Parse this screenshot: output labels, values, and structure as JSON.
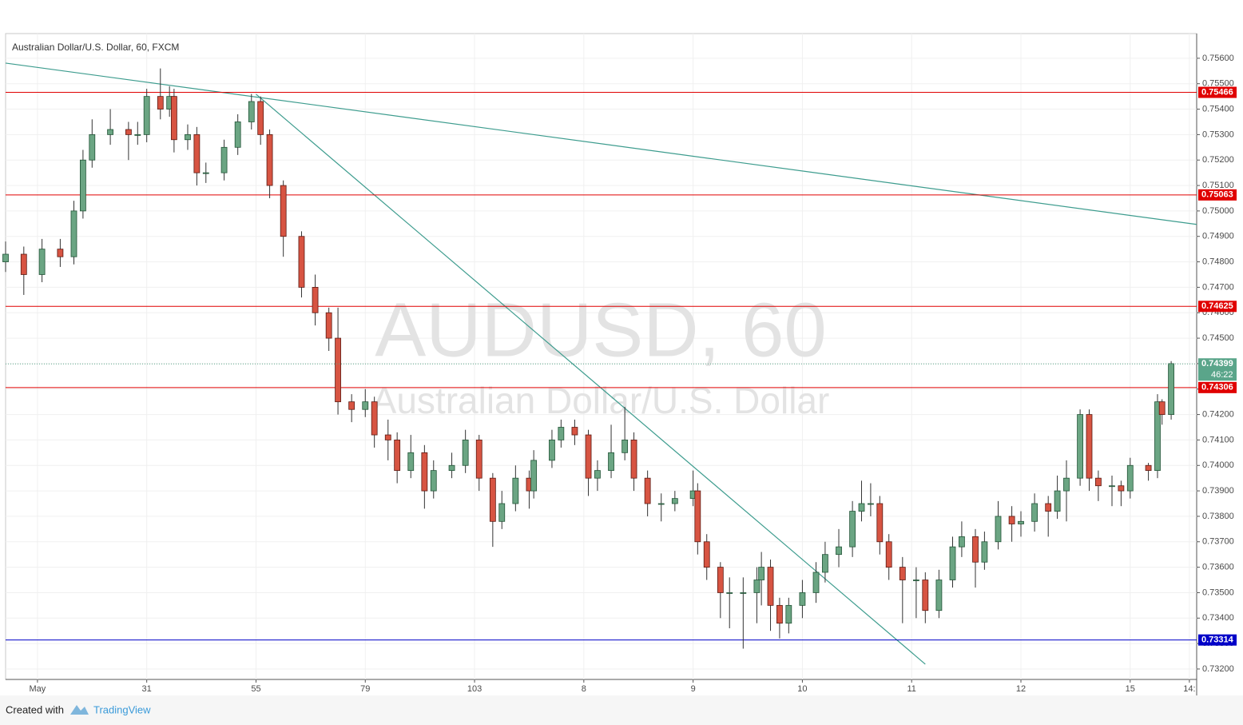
{
  "chart_data": {
    "type": "candlestick",
    "title": "Australian Dollar/U.S. Dollar, 60, FXCM",
    "watermark": "AUDUSD, 60",
    "watermark_subtitle": "Australian Dollar/U.S. Dollar",
    "footer": {
      "created": "Created with",
      "brand": "TradingView"
    },
    "up_color": "#6ba583",
    "down_color": "#d75442",
    "grid": true,
    "x": [
      0,
      4,
      8,
      12,
      15,
      17,
      19,
      23,
      27,
      29,
      31,
      34,
      36,
      37,
      40,
      42,
      44,
      48,
      51,
      54,
      56,
      58,
      61,
      65,
      68,
      71,
      73,
      76,
      79,
      81,
      84,
      86,
      89,
      92,
      94,
      98,
      101,
      104,
      107,
      109,
      112,
      115,
      116,
      120,
      122,
      125,
      128,
      130,
      133,
      136,
      138,
      141,
      144,
      147,
      151,
      152,
      154,
      157,
      159,
      162,
      165,
      166,
      168,
      170,
      172,
      175,
      178,
      180,
      183,
      186,
      188,
      190,
      192,
      194,
      197,
      200,
      202,
      205,
      208,
      210,
      213,
      215,
      218,
      221,
      223,
      226,
      229,
      231,
      233,
      236,
      238,
      240,
      243,
      245,
      247,
      251,
      253,
      254,
      256
    ],
    "open": [
      0.748,
      0.7483,
      0.7475,
      0.7485,
      0.7482,
      0.75,
      0.752,
      0.753,
      0.7532,
      0.753,
      0.753,
      0.7545,
      0.754,
      0.7545,
      0.7528,
      0.753,
      0.7515,
      0.7515,
      0.7525,
      0.7535,
      0.7543,
      0.753,
      0.751,
      0.749,
      0.747,
      0.746,
      0.745,
      0.7425,
      0.7422,
      0.7425,
      0.7412,
      0.741,
      0.7398,
      0.7405,
      0.739,
      0.7398,
      0.74,
      0.741,
      0.7395,
      0.7378,
      0.7385,
      0.7395,
      0.739,
      0.7402,
      0.741,
      0.7415,
      0.7412,
      0.7395,
      0.7398,
      0.7405,
      0.741,
      0.7395,
      0.7385,
      0.7385,
      0.7387,
      0.739,
      0.737,
      0.736,
      0.735,
      0.735,
      0.735,
      0.7355,
      0.736,
      0.7345,
      0.7338,
      0.7345,
      0.735,
      0.7358,
      0.7365,
      0.7368,
      0.7382,
      0.7385,
      0.7385,
      0.737,
      0.736,
      0.7355,
      0.7355,
      0.7343,
      0.7355,
      0.7368,
      0.7372,
      0.7362,
      0.737,
      0.738,
      0.7377,
      0.7378,
      0.7385,
      0.7382,
      0.739,
      0.7395,
      0.742,
      0.7395,
      0.7392,
      0.7392,
      0.739,
      0.74,
      0.7398,
      0.7425,
      0.742
    ],
    "high": [
      0.7488,
      0.7486,
      0.7489,
      0.7489,
      0.7504,
      0.7524,
      0.7536,
      0.754,
      0.7535,
      0.7535,
      0.7548,
      0.7556,
      0.7549,
      0.7548,
      0.7534,
      0.7533,
      0.7519,
      0.7528,
      0.7538,
      0.7546,
      0.7545,
      0.7532,
      0.7512,
      0.7492,
      0.7475,
      0.7462,
      0.7462,
      0.7428,
      0.743,
      0.7427,
      0.7418,
      0.7413,
      0.7412,
      0.7408,
      0.7402,
      0.7405,
      0.7414,
      0.7412,
      0.7397,
      0.739,
      0.74,
      0.7398,
      0.7406,
      0.7414,
      0.7418,
      0.7418,
      0.7414,
      0.7402,
      0.7416,
      0.7423,
      0.7413,
      0.7398,
      0.7389,
      0.739,
      0.7398,
      0.7393,
      0.7373,
      0.7362,
      0.7356,
      0.7356,
      0.736,
      0.7366,
      0.7363,
      0.7348,
      0.7348,
      0.7355,
      0.7362,
      0.737,
      0.7375,
      0.7386,
      0.7394,
      0.7393,
      0.7388,
      0.7373,
      0.7364,
      0.736,
      0.7358,
      0.7359,
      0.7372,
      0.7378,
      0.7375,
      0.7374,
      0.7386,
      0.7384,
      0.7382,
      0.7389,
      0.7388,
      0.7396,
      0.7402,
      0.7422,
      0.7422,
      0.7398,
      0.7396,
      0.7394,
      0.7403,
      0.7401,
      0.7428,
      0.7426,
      0.7441
    ],
    "low": [
      0.7476,
      0.7467,
      0.7472,
      0.7478,
      0.7479,
      0.7497,
      0.7517,
      0.7526,
      0.752,
      0.7526,
      0.7527,
      0.7536,
      0.7537,
      0.7523,
      0.7524,
      0.751,
      0.7511,
      0.7512,
      0.7522,
      0.7532,
      0.7526,
      0.7505,
      0.7482,
      0.7466,
      0.7455,
      0.7445,
      0.742,
      0.7417,
      0.7419,
      0.7407,
      0.7402,
      0.7393,
      0.7395,
      0.7383,
      0.7387,
      0.7395,
      0.7397,
      0.739,
      0.7368,
      0.7375,
      0.7382,
      0.7383,
      0.7387,
      0.7399,
      0.7407,
      0.7408,
      0.7388,
      0.739,
      0.7395,
      0.7402,
      0.739,
      0.738,
      0.7378,
      0.7382,
      0.7384,
      0.7365,
      0.7355,
      0.734,
      0.7336,
      0.7328,
      0.7338,
      0.7345,
      0.7335,
      0.7332,
      0.7334,
      0.734,
      0.7346,
      0.7354,
      0.736,
      0.7364,
      0.7378,
      0.738,
      0.7365,
      0.7355,
      0.7338,
      0.734,
      0.7338,
      0.734,
      0.7352,
      0.7364,
      0.7352,
      0.7359,
      0.7367,
      0.737,
      0.7372,
      0.7374,
      0.7372,
      0.7379,
      0.7378,
      0.7392,
      0.739,
      0.7386,
      0.7384,
      0.7384,
      0.7387,
      0.7394,
      0.7395,
      0.7416,
      0.7418
    ],
    "close": [
      0.7483,
      0.7475,
      0.7485,
      0.7482,
      0.75,
      0.752,
      0.753,
      0.7532,
      0.753,
      0.753,
      0.7545,
      0.754,
      0.7545,
      0.7528,
      0.753,
      0.7515,
      0.7515,
      0.7525,
      0.7535,
      0.7543,
      0.753,
      0.751,
      0.749,
      0.747,
      0.746,
      0.745,
      0.7425,
      0.7422,
      0.7425,
      0.7412,
      0.741,
      0.7398,
      0.7405,
      0.739,
      0.7398,
      0.74,
      0.741,
      0.7395,
      0.7378,
      0.7385,
      0.7395,
      0.739,
      0.7402,
      0.741,
      0.7415,
      0.7412,
      0.7395,
      0.7398,
      0.7405,
      0.741,
      0.7395,
      0.7385,
      0.7385,
      0.7387,
      0.739,
      0.737,
      0.736,
      0.735,
      0.735,
      0.735,
      0.7355,
      0.736,
      0.7345,
      0.7338,
      0.7345,
      0.735,
      0.7358,
      0.7365,
      0.7368,
      0.7382,
      0.7385,
      0.7385,
      0.737,
      0.736,
      0.7355,
      0.7355,
      0.7343,
      0.7355,
      0.7368,
      0.7372,
      0.7362,
      0.737,
      0.738,
      0.7377,
      0.7378,
      0.7385,
      0.7382,
      0.739,
      0.7395,
      0.742,
      0.7395,
      0.7392,
      0.7392,
      0.739,
      0.74,
      0.7398,
      0.7425,
      0.742,
      0.744
    ],
    "xlim": [
      0,
      261.6
    ],
    "xticks": [
      {
        "value": 7,
        "label": "May"
      },
      31,
      55,
      79,
      103,
      {
        "value": 127,
        "label": "8"
      },
      {
        "value": 151,
        "label": "9"
      },
      {
        "value": 175,
        "label": "10"
      },
      {
        "value": 199,
        "label": "11"
      },
      {
        "value": 223,
        "label": "12"
      },
      {
        "value": 247,
        "label": "15"
      },
      {
        "value": 260,
        "label": "14:"
      }
    ],
    "ylim": [
      0.73159,
      0.75697
    ],
    "yticks": [
      {
        "value": 0.732,
        "label": "0.73200"
      },
      {
        "value": 0.733,
        "label": "0.73300"
      },
      {
        "value": 0.734,
        "label": "0.73400"
      },
      {
        "value": 0.735,
        "label": "0.73500"
      },
      {
        "value": 0.736,
        "label": "0.73600"
      },
      {
        "value": 0.737,
        "label": "0.73700"
      },
      {
        "value": 0.738,
        "label": "0.73800"
      },
      {
        "value": 0.739,
        "label": "0.73900"
      },
      {
        "value": 0.74,
        "label": "0.74000"
      },
      {
        "value": 0.741,
        "label": "0.74100"
      },
      {
        "value": 0.742,
        "label": "0.74200"
      },
      {
        "value": 0.743,
        "label": "0.74300"
      },
      {
        "value": 0.744,
        "label": "0.74400"
      },
      {
        "value": 0.745,
        "label": "0.74500"
      },
      {
        "value": 0.746,
        "label": "0.74600"
      },
      {
        "value": 0.747,
        "label": "0.74700"
      },
      {
        "value": 0.748,
        "label": "0.74800"
      },
      {
        "value": 0.749,
        "label": "0.74900"
      },
      {
        "value": 0.75,
        "label": "0.75000"
      },
      {
        "value": 0.751,
        "label": "0.75100"
      },
      {
        "value": 0.752,
        "label": "0.75200"
      },
      {
        "value": 0.753,
        "label": "0.75300"
      },
      {
        "value": 0.754,
        "label": "0.75400"
      },
      {
        "value": 0.755,
        "label": "0.75500"
      },
      {
        "value": 0.756,
        "label": "0.75600"
      }
    ],
    "levels": [
      {
        "value": 0.75466,
        "label": "0.75466",
        "color": "#e00000"
      },
      {
        "value": 0.75063,
        "label": "0.75063",
        "color": "#e00000"
      },
      {
        "value": 0.74625,
        "label": "0.74625",
        "color": "#e00000"
      },
      {
        "value": 0.74306,
        "label": "0.74306",
        "color": "#e00000"
      },
      {
        "value": 0.73314,
        "label": "0.73314",
        "color": "#0000c8"
      }
    ],
    "current_price": {
      "value": 0.74399,
      "label": "0.74399",
      "countdown": "46:22",
      "color": "#5aa58a"
    },
    "trendlines": [
      {
        "x": [
          0,
          261.6
        ],
        "y": [
          0.75581,
          0.74947
        ],
        "color": "#3d9c8e"
      },
      {
        "x": [
          55,
          202
        ],
        "y": [
          0.75459,
          0.73219
        ],
        "color": "#3d9c8e"
      }
    ]
  }
}
